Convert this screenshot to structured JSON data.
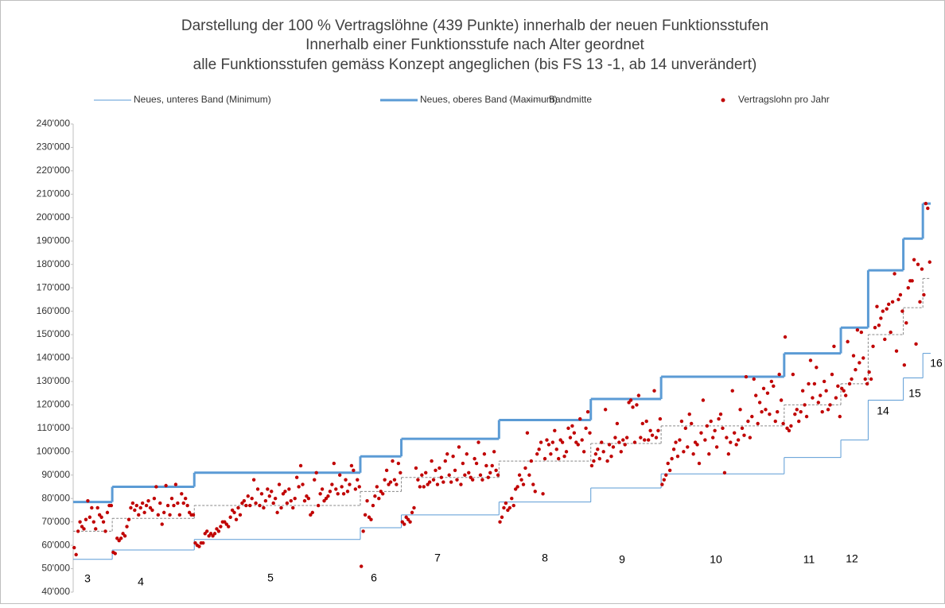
{
  "chart_data": {
    "type": "scatter",
    "title": [
      "Darstellung der 100 % Vertragslöhne (439 Punkte) innerhalb der neuen Funktionsstufen",
      "Innerhalb einer Funktionsstufe nach Alter geordnet",
      "alle Funktionsstufen gemäss Konzept angeglichen (bis FS 13  -1, ab 14 unverändert)"
    ],
    "ylim": [
      40000,
      240000
    ],
    "yticks": [
      {
        "value": 40000,
        "label": "40'000"
      },
      {
        "value": 50000,
        "label": "50'000"
      },
      {
        "value": 60000,
        "label": "60'000"
      },
      {
        "value": 70000,
        "label": "70'000"
      },
      {
        "value": 80000,
        "label": "80'000"
      },
      {
        "value": 90000,
        "label": "90'000"
      },
      {
        "value": 100000,
        "label": "100'000"
      },
      {
        "value": 110000,
        "label": "110'000"
      },
      {
        "value": 120000,
        "label": "120'000"
      },
      {
        "value": 130000,
        "label": "130'000"
      },
      {
        "value": 140000,
        "label": "140'000"
      },
      {
        "value": 150000,
        "label": "150'000"
      },
      {
        "value": 160000,
        "label": "160'000"
      },
      {
        "value": 170000,
        "label": "170'000"
      },
      {
        "value": 180000,
        "label": "180'000"
      },
      {
        "value": 190000,
        "label": "190'000"
      },
      {
        "value": 200000,
        "label": "200'000"
      },
      {
        "value": 210000,
        "label": "210'000"
      },
      {
        "value": 220000,
        "label": "220'000"
      },
      {
        "value": 230000,
        "label": "230'000"
      },
      {
        "value": 240000,
        "label": "240'000"
      }
    ],
    "grid": false,
    "groups": [
      "3",
      "4",
      "5",
      "6",
      "7",
      "8",
      "9",
      "10",
      "11",
      "12",
      "14",
      "15",
      "16"
    ],
    "group_bounds": [
      0,
      20,
      62,
      147,
      168,
      218,
      265,
      301,
      364,
      393,
      407,
      425,
      435,
      439
    ],
    "bands": [
      {
        "name": "Neues, unteres Band (Minimum)",
        "color": "#5b9bd5",
        "width": 1,
        "dash": false,
        "values": [
          54000,
          58000,
          62500,
          67500,
          73000,
          78500,
          84500,
          90500,
          97500,
          105000,
          122000,
          131500,
          142000
        ]
      },
      {
        "name": "Neues, oberes Band (Maximum)",
        "color": "#5b9bd5",
        "width": 3,
        "dash": false,
        "values": [
          78500,
          85000,
          91000,
          98000,
          105500,
          113500,
          122500,
          132000,
          142000,
          153000,
          177500,
          191000,
          206000
        ]
      },
      {
        "name": "Bandmitte",
        "color": "#888888",
        "width": 1,
        "dash": true,
        "values": [
          66000,
          71500,
          77000,
          83000,
          89000,
          96000,
          103500,
          111000,
          120000,
          129000,
          150000,
          161500,
          174000
        ]
      }
    ],
    "series": [
      {
        "name": "Vertragslohn pro Jahr",
        "color": "#c00000",
        "values": [
          59000,
          56000,
          66000,
          70000,
          68000,
          67000,
          71000,
          79000,
          72000,
          76000,
          70000,
          67000,
          76000,
          73000,
          72000,
          70000,
          66000,
          74000,
          77000,
          77000,
          57000,
          56500,
          63000,
          62000,
          63000,
          65000,
          64000,
          68000,
          71000,
          76000,
          78000,
          75000,
          77000,
          73000,
          76000,
          78000,
          74000,
          77000,
          79000,
          76000,
          75000,
          80000,
          85000,
          73000,
          78000,
          69000,
          74000,
          85500,
          77000,
          73000,
          80000,
          77000,
          86000,
          78000,
          73000,
          82000,
          78000,
          80000,
          77000,
          74000,
          73000,
          73000,
          61000,
          60000,
          59500,
          61000,
          61000,
          65000,
          66000,
          64000,
          65000,
          64000,
          65000,
          67000,
          66000,
          68000,
          70000,
          70000,
          69000,
          68000,
          72000,
          75000,
          74000,
          71000,
          76000,
          73000,
          78000,
          79000,
          77000,
          81000,
          77000,
          80000,
          88000,
          78000,
          84000,
          77000,
          82000,
          76000,
          79000,
          84000,
          81000,
          83000,
          78000,
          80000,
          74000,
          86000,
          76000,
          82000,
          83000,
          78000,
          84000,
          79000,
          76000,
          80000,
          89000,
          85000,
          94000,
          86000,
          79000,
          81000,
          80000,
          73000,
          74000,
          88000,
          91000,
          77000,
          82000,
          84000,
          79000,
          80000,
          81000,
          83000,
          86000,
          95000,
          84000,
          82000,
          90000,
          85000,
          82000,
          88000,
          83000,
          86000,
          94000,
          92000,
          84000,
          88000,
          85000,
          51000,
          66000,
          73000,
          79000,
          72000,
          71000,
          77000,
          81000,
          85000,
          80000,
          83000,
          82000,
          88000,
          92000,
          86000,
          87000,
          96000,
          88000,
          86000,
          95000,
          91000,
          70000,
          69000,
          72000,
          71000,
          70000,
          74000,
          76000,
          93000,
          88000,
          85000,
          90000,
          85000,
          91000,
          86000,
          87000,
          96000,
          88000,
          92000,
          86000,
          93000,
          89000,
          87000,
          96000,
          99000,
          90000,
          87000,
          98000,
          92000,
          88000,
          102000,
          86000,
          95000,
          90000,
          99000,
          91000,
          89000,
          88000,
          97000,
          95000,
          104000,
          90000,
          88000,
          99000,
          94000,
          89000,
          91000,
          94000,
          100000,
          92000,
          90000,
          70000,
          72000,
          76000,
          78000,
          75000,
          76000,
          80000,
          77000,
          84000,
          85000,
          90000,
          88000,
          86000,
          93000,
          108000,
          90000,
          96000,
          86000,
          83000,
          99000,
          101000,
          104000,
          82000,
          97000,
          105000,
          103000,
          99000,
          104000,
          109000,
          101000,
          97000,
          105000,
          104000,
          98000,
          100000,
          110000,
          106000,
          111000,
          108000,
          104000,
          103000,
          114000,
          105000,
          100000,
          110000,
          117000,
          108000,
          94000,
          96000,
          99000,
          101000,
          97000,
          104000,
          100000,
          118000,
          96000,
          103000,
          98000,
          102000,
          106000,
          112000,
          104000,
          100000,
          105000,
          103000,
          106000,
          121000,
          122000,
          119000,
          104000,
          120000,
          124000,
          106000,
          112000,
          105000,
          113000,
          105000,
          109000,
          107000,
          126000,
          106000,
          109000,
          114000,
          86000,
          88000,
          90000,
          95000,
          92000,
          97000,
          101000,
          104000,
          98000,
          105000,
          113000,
          100000,
          110000,
          102000,
          116000,
          112000,
          99000,
          104000,
          103000,
          95000,
          108000,
          122000,
          105000,
          111000,
          99000,
          113000,
          106000,
          109000,
          102000,
          114000,
          116000,
          110000,
          91000,
          106000,
          99000,
          104000,
          126000,
          108000,
          103000,
          105000,
          118000,
          110000,
          107000,
          132000,
          113000,
          106000,
          115000,
          131000,
          124000,
          112000,
          121000,
          117000,
          127000,
          118000,
          125000,
          116000,
          130000,
          128000,
          113000,
          117000,
          133000,
          122000,
          112000,
          149000,
          110000,
          109000,
          111000,
          133000,
          116000,
          118000,
          113000,
          117000,
          126000,
          120000,
          115000,
          129000,
          139000,
          123000,
          129000,
          136000,
          121000,
          124000,
          117000,
          130000,
          126000,
          118000,
          120000,
          133000,
          145000,
          123000,
          128000,
          115000,
          127000,
          126000,
          124000,
          147000,
          129000,
          131000,
          141000,
          135000,
          152000,
          138000,
          151000,
          140000,
          131000,
          129000,
          134000,
          131000,
          145000,
          153000,
          162000,
          154000,
          157000,
          160000,
          148000,
          161000,
          163000,
          151000,
          164000,
          176000,
          143000,
          165000,
          167000,
          160000,
          137000,
          155000,
          170000,
          173000,
          173000,
          182000,
          146000,
          180000,
          164000,
          178000,
          167000,
          206000,
          204000,
          181000
        ]
      }
    ]
  }
}
